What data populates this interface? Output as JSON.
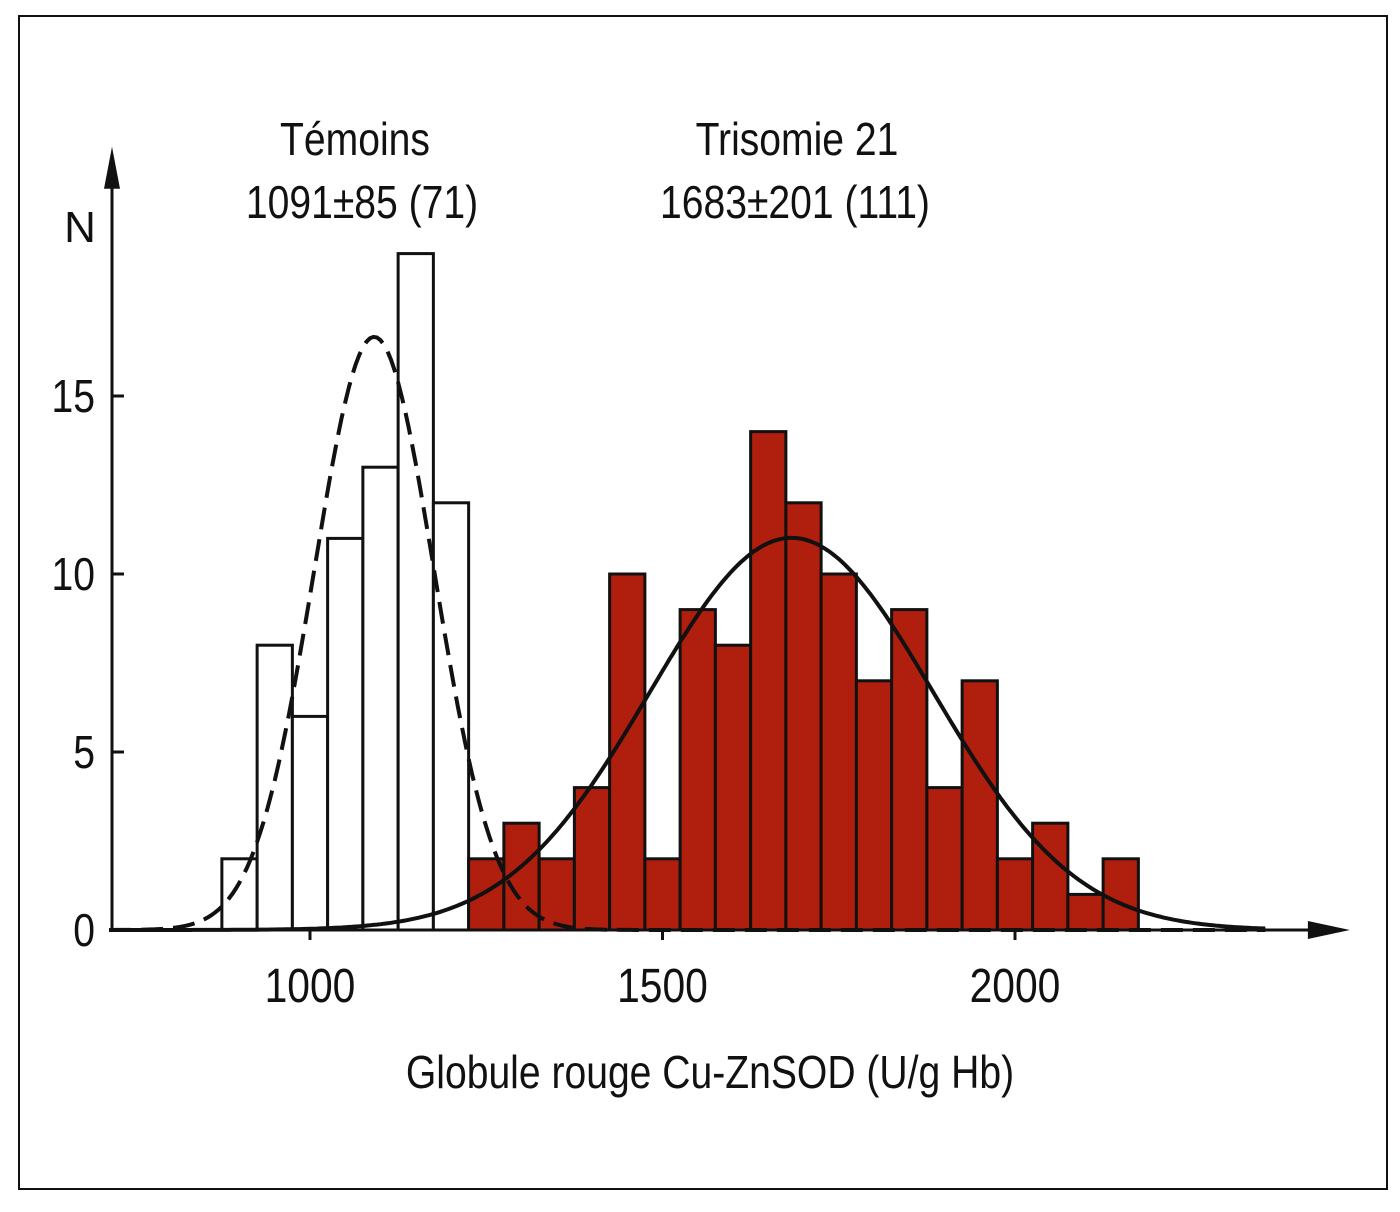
{
  "chart_data": {
    "type": "bar",
    "title": "",
    "xlabel": "Globule rouge Cu-ZnSOD (U/g Hb)",
    "ylabel": "N",
    "xlim": [
      715,
      2475
    ],
    "ylim": [
      0,
      22
    ],
    "xticks": [
      1000,
      1500,
      2000
    ],
    "yticks": [
      0,
      5,
      10,
      15
    ],
    "bin_width": 50,
    "series": [
      {
        "name": "Témoins",
        "annotation": "1091±85 (71)",
        "mean": 1091,
        "sd": 85,
        "n": 71,
        "bin_start": 875,
        "values": [
          2,
          8,
          6,
          11,
          13,
          19,
          12
        ],
        "fill": "#ffffff",
        "fit_curve": "dashed"
      },
      {
        "name": "Trisomie 21",
        "annotation": "1683±201 (111)",
        "mean": 1683,
        "sd": 201,
        "n": 111,
        "bin_start": 1225,
        "values": [
          2,
          3,
          2,
          4,
          10,
          2,
          9,
          8,
          14,
          12,
          10,
          7,
          9,
          4,
          7,
          2,
          3,
          1,
          2
        ],
        "fill": "#b01e0e",
        "fit_curve": "solid"
      }
    ],
    "grid": false,
    "legend": "none"
  }
}
